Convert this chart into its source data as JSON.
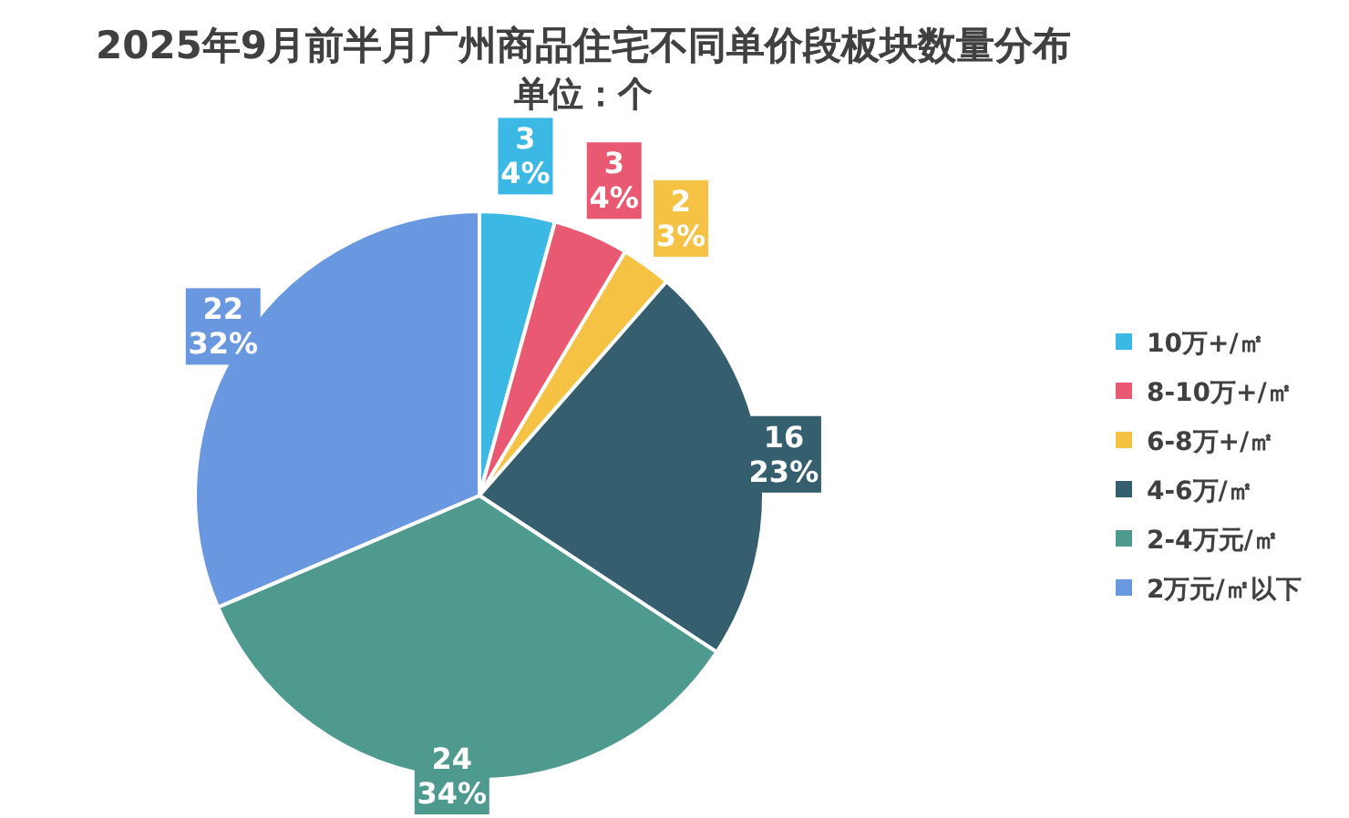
{
  "chart_data": {
    "type": "pie",
    "title": "2025年9月前半月广州商品住宅不同单价段板块数量分布",
    "subtitle": "单位：个",
    "categories": [
      "10万+/㎡",
      "8-10万+/㎡",
      "6-8万+/㎡",
      "4-6万/㎡",
      "2-4万元/㎡",
      "2万元/㎡以下"
    ],
    "values": [
      3,
      3,
      2,
      16,
      24,
      22
    ],
    "colors": [
      "#3bb8e4",
      "#e95a72",
      "#f6c244",
      "#355f6e",
      "#4e9a8f",
      "#6a98e0"
    ],
    "value_labels": [
      "3\n4%",
      "3\n4%",
      "2\n3%",
      "16\n23%",
      "24\n34%",
      "22\n32%"
    ],
    "legend": "right"
  }
}
